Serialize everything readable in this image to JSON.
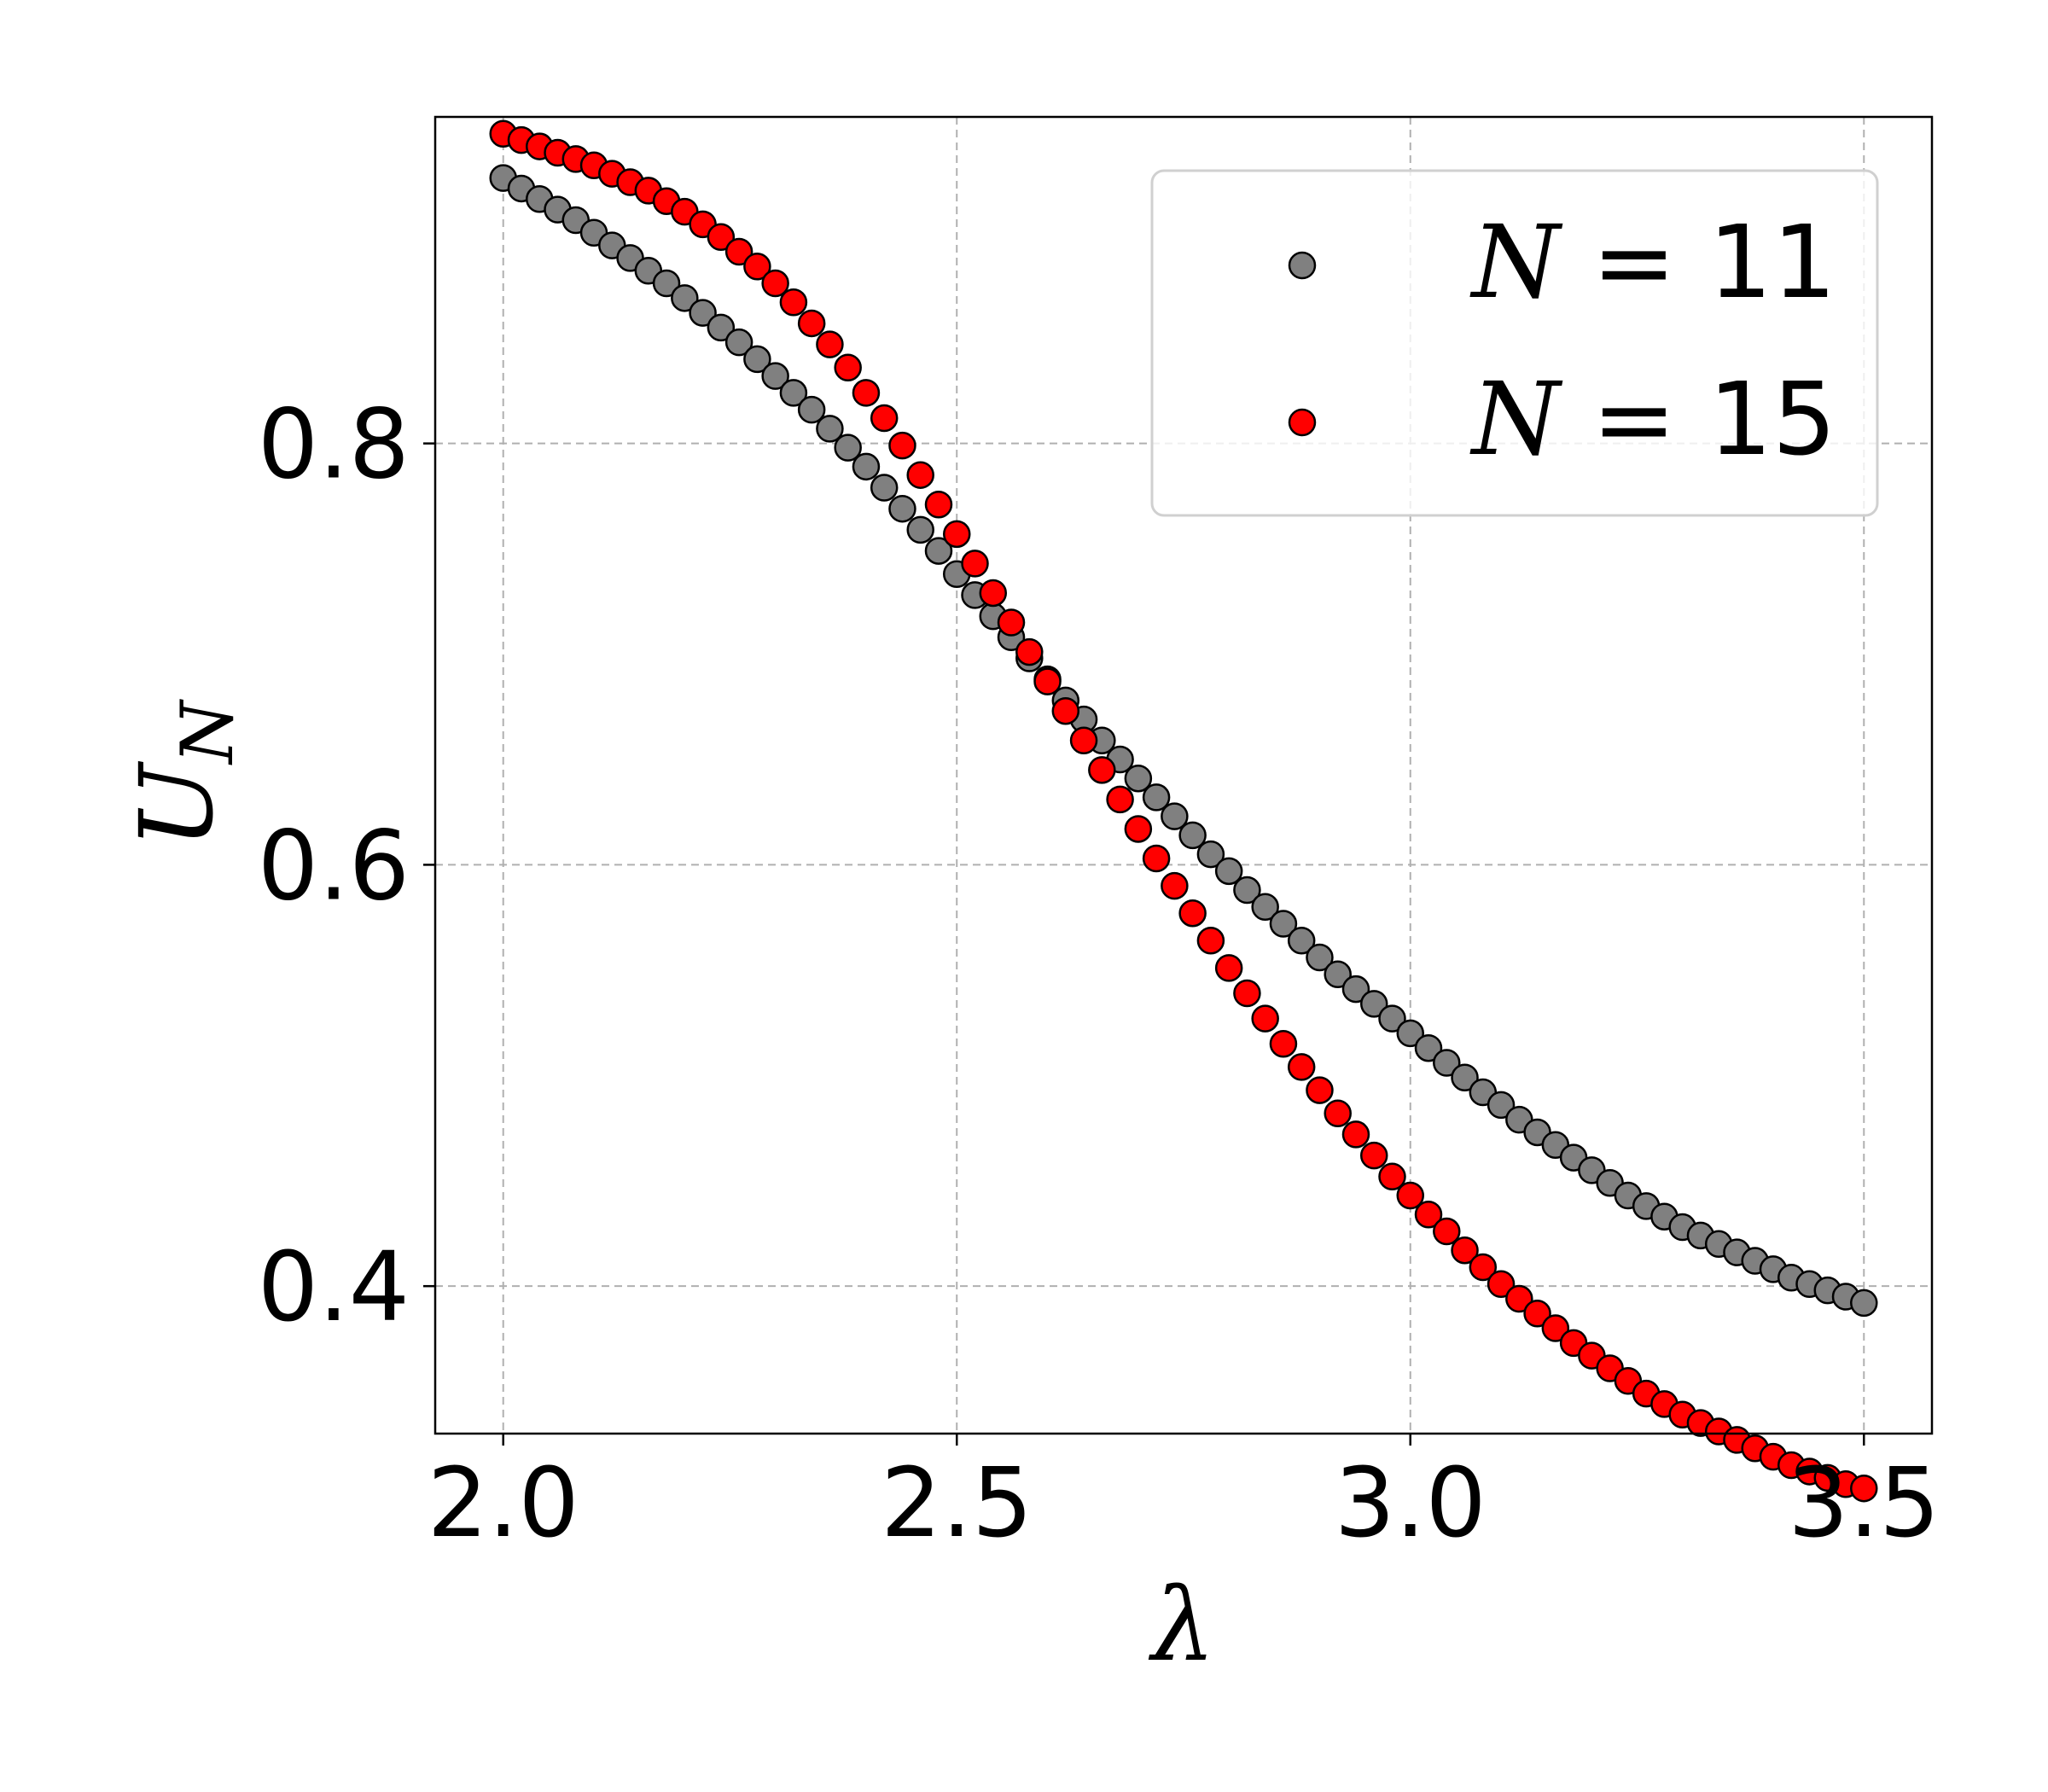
{
  "chart_data": {
    "type": "scatter",
    "title": "",
    "xlabel": "λ",
    "ylabel": {
      "main": "U",
      "sub": "N"
    },
    "xlim": [
      1.925,
      3.575
    ],
    "ylim": [
      0.33,
      0.955
    ],
    "xticks": [
      2.0,
      2.5,
      3.0,
      3.5
    ],
    "xtick_labels": [
      "2.0",
      "2.5",
      "3.0",
      "3.5"
    ],
    "yticks": [
      0.4,
      0.6,
      0.8
    ],
    "ytick_labels": [
      "0.4",
      "0.6",
      "0.8"
    ],
    "grid": true,
    "legend_position": "top-right",
    "series": [
      {
        "name": {
          "var": "N",
          "rest": " = 11"
        },
        "color": "#808080",
        "edge_color": "#000000",
        "x": [
          2.0,
          2.02,
          2.04,
          2.06,
          2.08,
          2.1,
          2.12,
          2.14,
          2.16,
          2.18,
          2.2,
          2.22,
          2.24,
          2.26,
          2.28,
          2.3,
          2.32,
          2.34,
          2.36,
          2.38,
          2.4,
          2.42,
          2.44,
          2.46,
          2.48,
          2.5,
          2.52,
          2.54,
          2.56,
          2.58,
          2.6,
          2.62,
          2.64,
          2.66,
          2.68,
          2.7,
          2.72,
          2.74,
          2.76,
          2.78,
          2.8,
          2.82,
          2.84,
          2.86,
          2.88,
          2.9,
          2.92,
          2.94,
          2.96,
          2.98,
          3.0,
          3.02,
          3.04,
          3.06,
          3.08,
          3.1,
          3.12,
          3.14,
          3.16,
          3.18,
          3.2,
          3.22,
          3.24,
          3.26,
          3.28,
          3.3,
          3.32,
          3.34,
          3.36,
          3.38,
          3.4,
          3.42,
          3.44,
          3.46,
          3.48,
          3.5
        ],
        "y": [
          0.926,
          0.921,
          0.916,
          0.911,
          0.906,
          0.9,
          0.894,
          0.888,
          0.882,
          0.876,
          0.869,
          0.862,
          0.855,
          0.848,
          0.84,
          0.832,
          0.824,
          0.816,
          0.807,
          0.798,
          0.789,
          0.779,
          0.769,
          0.759,
          0.749,
          0.738,
          0.728,
          0.718,
          0.708,
          0.698,
          0.688,
          0.678,
          0.669,
          0.659,
          0.65,
          0.641,
          0.632,
          0.623,
          0.614,
          0.605,
          0.597,
          0.588,
          0.58,
          0.572,
          0.564,
          0.556,
          0.548,
          0.541,
          0.534,
          0.527,
          0.52,
          0.513,
          0.506,
          0.499,
          0.492,
          0.486,
          0.479,
          0.473,
          0.467,
          0.461,
          0.455,
          0.449,
          0.443,
          0.438,
          0.433,
          0.428,
          0.424,
          0.42,
          0.416,
          0.412,
          0.408,
          0.404,
          0.401,
          0.398,
          0.395,
          0.392
        ]
      },
      {
        "name": {
          "var": "N",
          "rest": " = 15"
        },
        "color": "#ff0000",
        "edge_color": "#000000",
        "x": [
          2.0,
          2.02,
          2.04,
          2.06,
          2.08,
          2.1,
          2.12,
          2.14,
          2.16,
          2.18,
          2.2,
          2.22,
          2.24,
          2.26,
          2.28,
          2.3,
          2.32,
          2.34,
          2.36,
          2.38,
          2.4,
          2.42,
          2.44,
          2.46,
          2.48,
          2.5,
          2.52,
          2.54,
          2.56,
          2.58,
          2.6,
          2.62,
          2.64,
          2.66,
          2.68,
          2.7,
          2.72,
          2.74,
          2.76,
          2.78,
          2.8,
          2.82,
          2.84,
          2.86,
          2.88,
          2.9,
          2.92,
          2.94,
          2.96,
          2.98,
          3.0,
          3.02,
          3.04,
          3.06,
          3.08,
          3.1,
          3.12,
          3.14,
          3.16,
          3.18,
          3.2,
          3.22,
          3.24,
          3.26,
          3.28,
          3.3,
          3.32,
          3.34,
          3.36,
          3.38,
          3.4,
          3.42,
          3.44,
          3.46,
          3.48,
          3.5
        ],
        "y": [
          0.947,
          0.944,
          0.941,
          0.938,
          0.935,
          0.932,
          0.928,
          0.924,
          0.92,
          0.915,
          0.91,
          0.904,
          0.898,
          0.891,
          0.884,
          0.876,
          0.867,
          0.857,
          0.847,
          0.836,
          0.824,
          0.812,
          0.799,
          0.785,
          0.771,
          0.757,
          0.743,
          0.729,
          0.715,
          0.701,
          0.687,
          0.673,
          0.659,
          0.645,
          0.631,
          0.617,
          0.603,
          0.59,
          0.577,
          0.564,
          0.551,
          0.539,
          0.527,
          0.515,
          0.504,
          0.493,
          0.482,
          0.472,
          0.462,
          0.452,
          0.443,
          0.434,
          0.426,
          0.417,
          0.409,
          0.401,
          0.394,
          0.387,
          0.38,
          0.373,
          0.367,
          0.361,
          0.355,
          0.349,
          0.344,
          0.339,
          0.335,
          0.331,
          0.327,
          0.323,
          0.319,
          0.315,
          0.312,
          0.309,
          0.306,
          0.304
        ]
      }
    ]
  }
}
